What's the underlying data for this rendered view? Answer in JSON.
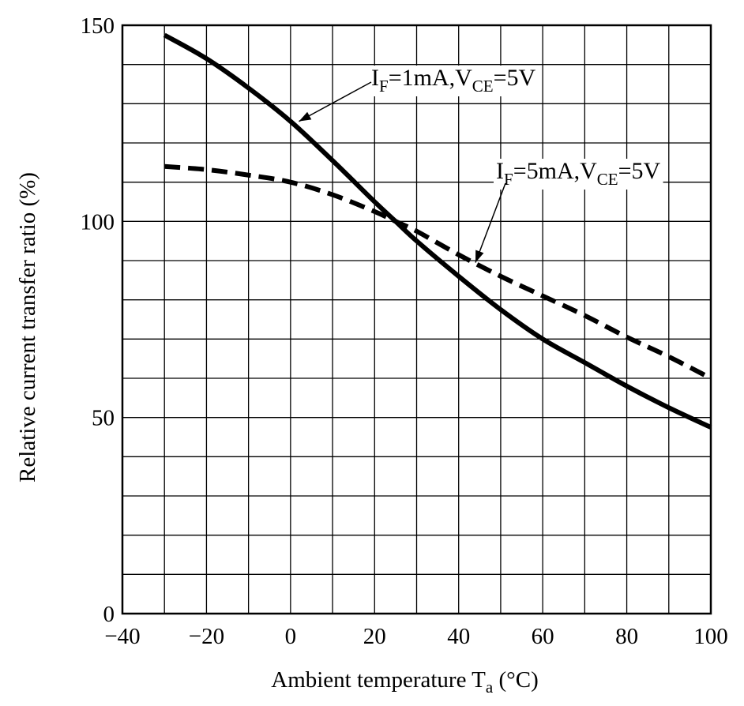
{
  "chart_data": {
    "type": "line",
    "title": "",
    "xlabel": "Ambient temperature T",
    "xlabel_sub": "a",
    "xlabel_unit": " (°C)",
    "ylabel": "Relative current transfer ratio (%)",
    "xlim": [
      -40,
      100
    ],
    "ylim": [
      0,
      150
    ],
    "x_ticks": [
      -40,
      -20,
      0,
      20,
      40,
      60,
      80,
      100
    ],
    "x_tick_labels": [
      "−40",
      "−20",
      "0",
      "20",
      "40",
      "60",
      "80",
      "100"
    ],
    "y_ticks": [
      0,
      50,
      100,
      150
    ],
    "y_tick_labels": [
      "0",
      "50",
      "100",
      "150"
    ],
    "x_grid_step": 10,
    "y_grid_step": 10,
    "grid": true,
    "legend": "none",
    "series": [
      {
        "name": "IF=1mA,VCE=5V",
        "style": "solid",
        "color": "#000000",
        "x": [
          -30,
          -20,
          -10,
          0,
          10,
          20,
          25,
          30,
          40,
          50,
          60,
          70,
          80,
          90,
          100
        ],
        "y": [
          147.5,
          141.5,
          134,
          125.5,
          115.5,
          105,
          100,
          95,
          86,
          77.5,
          70,
          64,
          58,
          52.5,
          47.5
        ]
      },
      {
        "name": "IF=5mA,VCE=5V",
        "style": "dashed",
        "color": "#000000",
        "x": [
          -30,
          -20,
          -10,
          0,
          10,
          20,
          25,
          30,
          40,
          50,
          60,
          70,
          80,
          90,
          100
        ],
        "y": [
          114,
          113.2,
          111.8,
          110,
          106.8,
          102.5,
          100,
          97.5,
          91.5,
          86,
          81,
          76,
          70.5,
          65.5,
          60
        ]
      }
    ],
    "annotations": [
      {
        "main1": "I",
        "sub1": "F",
        "main2": "=1mA,V",
        "sub2": "CE",
        "main3": "=5V",
        "points_to": [
          2,
          125.5
        ]
      },
      {
        "main1": "I",
        "sub1": "F",
        "main2": "=5mA,V",
        "sub2": "CE",
        "main3": "=5V",
        "points_to": [
          44,
          89.5
        ]
      }
    ]
  }
}
